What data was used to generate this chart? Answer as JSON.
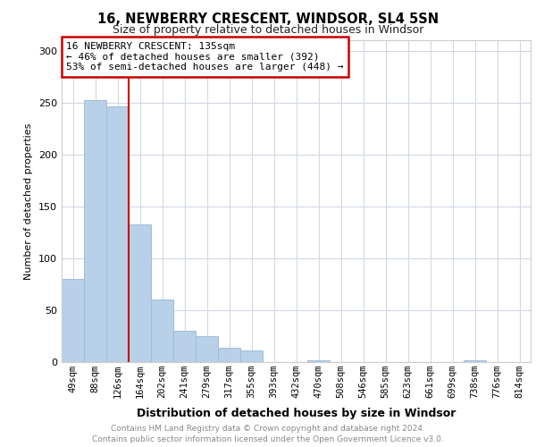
{
  "title_line1": "16, NEWBERRY CRESCENT, WINDSOR, SL4 5SN",
  "title_line2": "Size of property relative to detached houses in Windsor",
  "xlabel": "Distribution of detached houses by size in Windsor",
  "ylabel": "Number of detached properties",
  "footer_line1": "Contains HM Land Registry data © Crown copyright and database right 2024.",
  "footer_line2": "Contains public sector information licensed under the Open Government Licence v3.0.",
  "annotation_line1": "16 NEWBERRY CRESCENT: 135sqm",
  "annotation_line2": "← 46% of detached houses are smaller (392)",
  "annotation_line3": "53% of semi-detached houses are larger (448) →",
  "categories": [
    "49sqm",
    "88sqm",
    "126sqm",
    "164sqm",
    "202sqm",
    "241sqm",
    "279sqm",
    "317sqm",
    "355sqm",
    "393sqm",
    "432sqm",
    "470sqm",
    "508sqm",
    "546sqm",
    "585sqm",
    "623sqm",
    "661sqm",
    "699sqm",
    "738sqm",
    "776sqm",
    "814sqm"
  ],
  "bar_heights": [
    80,
    252,
    246,
    133,
    60,
    30,
    25,
    14,
    11,
    0,
    0,
    2,
    0,
    0,
    0,
    0,
    0,
    0,
    2,
    0,
    0
  ],
  "bar_color": "#b8d0e8",
  "bar_edge_color": "#a0bdd8",
  "red_line_color": "#cc0000",
  "grid_color": "#d0d8e4",
  "ylim": [
    0,
    310
  ],
  "yticks": [
    0,
    50,
    100,
    150,
    200,
    250,
    300
  ],
  "red_line_bar_index": 2,
  "annotation_box_color": "#cc0000"
}
